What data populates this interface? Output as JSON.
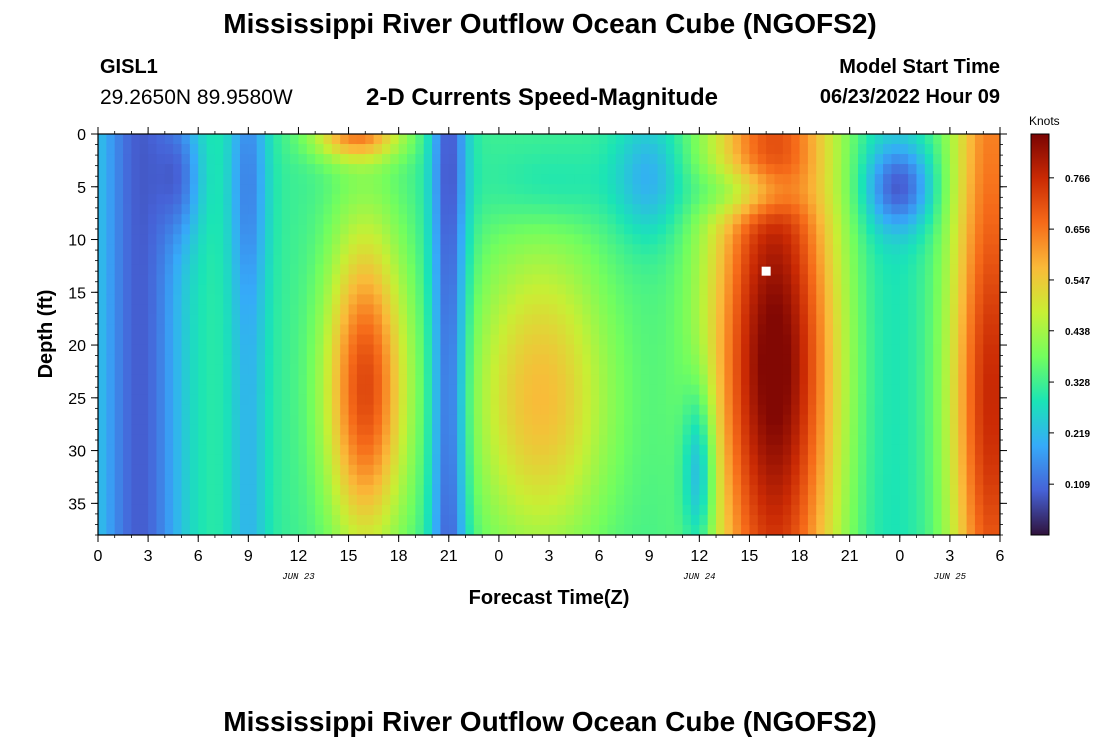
{
  "header": {
    "title": "Mississippi River Outflow Ocean Cube (NGOFS2)",
    "station": "GISL1",
    "coords": "29.2650N  89.9580W",
    "subtitle": "2-D Currents Speed-Magnitude",
    "model_label": "Model Start Time",
    "model_time": "06/23/2022 Hour 09"
  },
  "footer": {
    "title": "Mississippi River Outflow Ocean Cube (NGOFS2)"
  },
  "colors": {
    "colormap": [
      "#30123b",
      "#4662d7",
      "#36aaf9",
      "#1ae4b6",
      "#72fe5e",
      "#c8ef34",
      "#faba39",
      "#f66b19",
      "#ca2a04",
      "#7a0403"
    ],
    "marker": "#ffffff"
  },
  "chart_data": {
    "type": "heatmap",
    "xlabel": "Forecast Time(Z)",
    "ylabel": "Depth (ft)",
    "units": "Knots",
    "x_tick_labels": [
      "0",
      "3",
      "6",
      "9",
      "12",
      "15",
      "18",
      "21",
      "0",
      "3",
      "6",
      "9",
      "12",
      "15",
      "18",
      "21",
      "0",
      "3",
      "6"
    ],
    "date_labels": [
      {
        "text": "JUN 23",
        "hour": 12
      },
      {
        "text": "JUN 24",
        "hour": 36
      },
      {
        "text": "JUN 25",
        "hour": 51
      }
    ],
    "xlim": [
      0,
      54
    ],
    "ylim": [
      0,
      38
    ],
    "y_inverted": true,
    "y_ticks": [
      0,
      5,
      10,
      15,
      20,
      25,
      30,
      35
    ],
    "colorbar_ticks": [
      0.109,
      0.219,
      0.328,
      0.438,
      0.547,
      0.656,
      0.766
    ],
    "colorbar_range": [
      0.0,
      0.86
    ],
    "marker_point": {
      "hour": 40,
      "depth": 13
    },
    "grid": false
  }
}
